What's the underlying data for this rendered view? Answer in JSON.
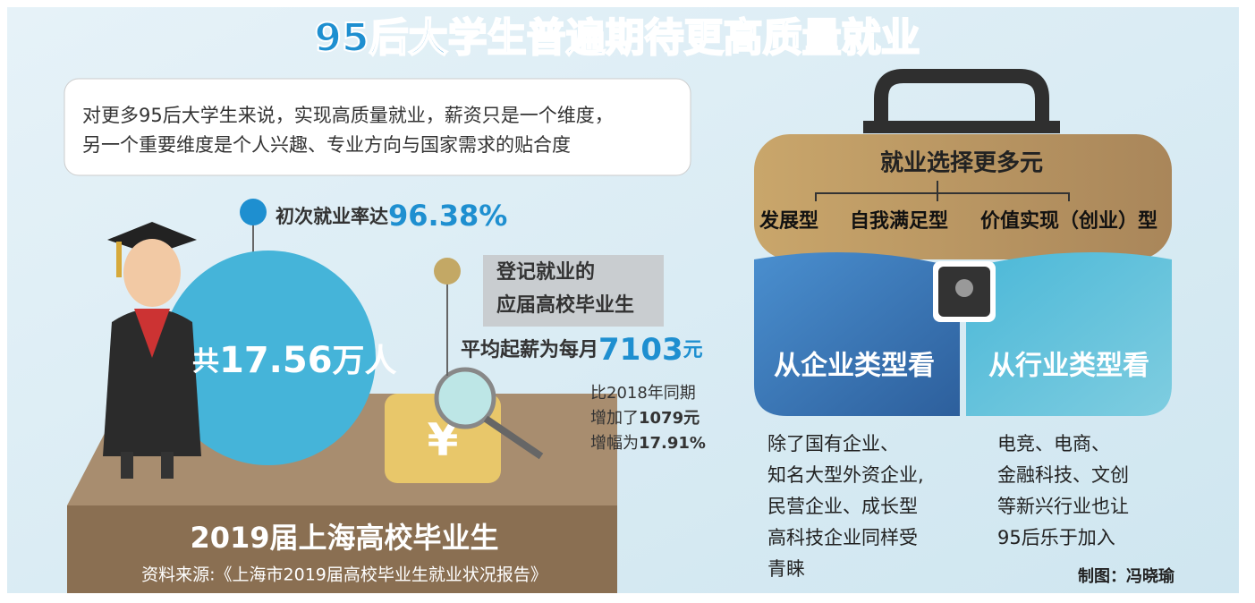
{
  "title": "95后大学生普遍期待更高质量就业",
  "intro": [
    "对更多95后大学生来说，实现高质量就业，薪资只是一个维度，",
    "另一个重要维度是个人兴趣、专业方向与国家需求的贴合度"
  ],
  "employment_rate": {
    "label": "初次就业率达",
    "value": "96.38%"
  },
  "total": {
    "prefix": "共",
    "value": "17.56",
    "unit": "万人"
  },
  "registered": [
    "登记就业的",
    "应届高校毕业生"
  ],
  "salary": {
    "label": "平均起薪为每月",
    "value": "7103",
    "unit": "元"
  },
  "comparison": {
    "line1": "比2018年同期",
    "line2_label": "增加了",
    "line2_value": "1079元",
    "line3_label": "增幅为",
    "line3_value": "17.91%"
  },
  "footer": {
    "title": "2019届上海高校毕业生",
    "source": "资料来源:《上海市2019届高校毕业生就业状况报告》"
  },
  "briefcase": {
    "heading": "就业选择更多元",
    "types": [
      "发展型",
      "自我满足型",
      "价值实现（创业）型"
    ],
    "panels": [
      {
        "heading": "从企业类型看",
        "lines": [
          "除了国有企业、",
          "知名大型外资企业,",
          "民营企业、成长型",
          "高科技企业同样受",
          "青睐"
        ]
      },
      {
        "heading": "从行业类型看",
        "lines": [
          "电竞、电商、",
          "金融科技、文创",
          "等新兴行业也让",
          "95后乐于加入"
        ]
      }
    ]
  },
  "credit": "制图：冯晓瑜"
}
